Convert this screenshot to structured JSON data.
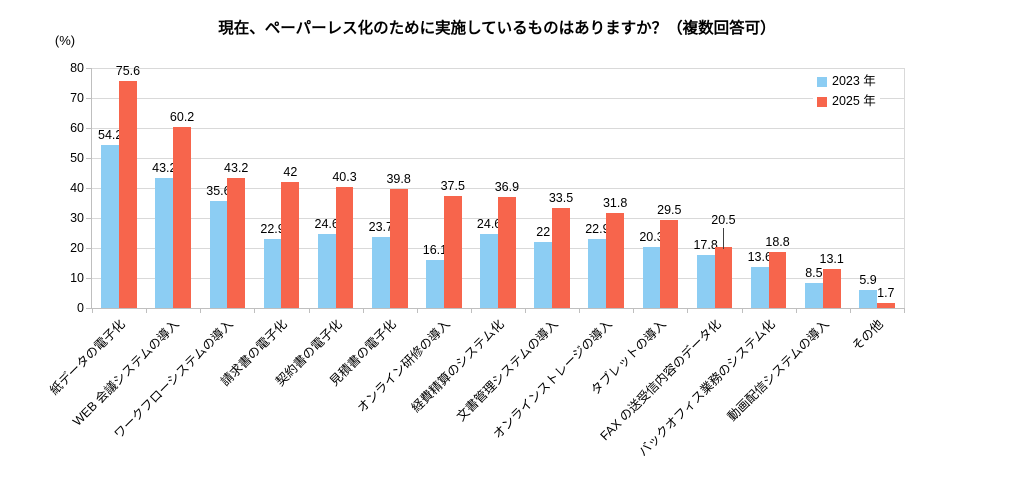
{
  "chart_data": {
    "type": "bar",
    "title": "現在、ペーパーレス化のために実施しているものはありますか？（複数回答可）",
    "ylabel": "(%)",
    "xlabel": "",
    "ylim": [
      0,
      80
    ],
    "y_ticks": [
      0,
      10,
      20,
      30,
      40,
      50,
      60,
      70,
      80
    ],
    "grid": true,
    "legend_position": "top-right-inside-plot",
    "categories": [
      "紙データの電子化",
      "WEB 会議システムの導入",
      "ワークフローシステムの導入",
      "請求書の電子化",
      "契約書の電子化",
      "見積書の電子化",
      "オンライン研修の導入",
      "経費精算のシステム化",
      "文書管理システムの導入",
      "オンラインストレージの導入",
      "タブレットの導入",
      "FAX の送受信内容のデータ化",
      "バックオフィス業務のシステム化",
      "動画配信システムの導入",
      "その他"
    ],
    "series": [
      {
        "name": "2023 年",
        "color": "#8CCDF3",
        "values": [
          54.2,
          43.2,
          35.6,
          22.9,
          24.6,
          23.7,
          16.1,
          24.6,
          22,
          22.9,
          20.3,
          17.8,
          13.6,
          8.5,
          5.9
        ]
      },
      {
        "name": "2025 年",
        "color": "#F7654C",
        "values": [
          75.6,
          60.2,
          43.2,
          42,
          40.3,
          39.8,
          37.5,
          36.9,
          33.5,
          31.8,
          29.5,
          20.5,
          18.8,
          13.1,
          1.7
        ]
      }
    ],
    "colors": {
      "gridline": "#D9D9D9",
      "axis": "#BFBFBF",
      "label_text": "#000000",
      "leader_line": "#404040"
    }
  }
}
